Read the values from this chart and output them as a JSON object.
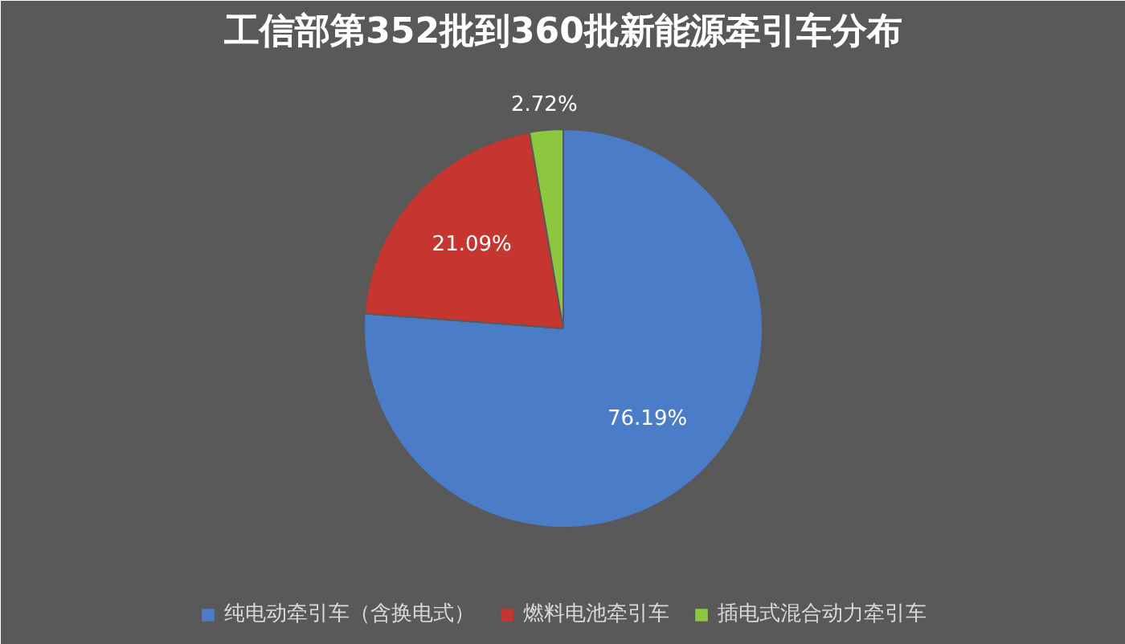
{
  "chart_data": {
    "type": "pie",
    "title": "工信部第352批到360批新能源牵引车分布",
    "categories": [
      "纯电动牵引车（含换电式）",
      "燃料电池牵引车",
      "插电式混合动力牵引车"
    ],
    "values": [
      76.19,
      21.09,
      2.72
    ],
    "colors": [
      "#4a7cc8",
      "#c4362f",
      "#8dc63f"
    ],
    "value_labels": [
      "76.19%",
      "21.09%",
      "2.72%"
    ],
    "legend": "bottom"
  }
}
